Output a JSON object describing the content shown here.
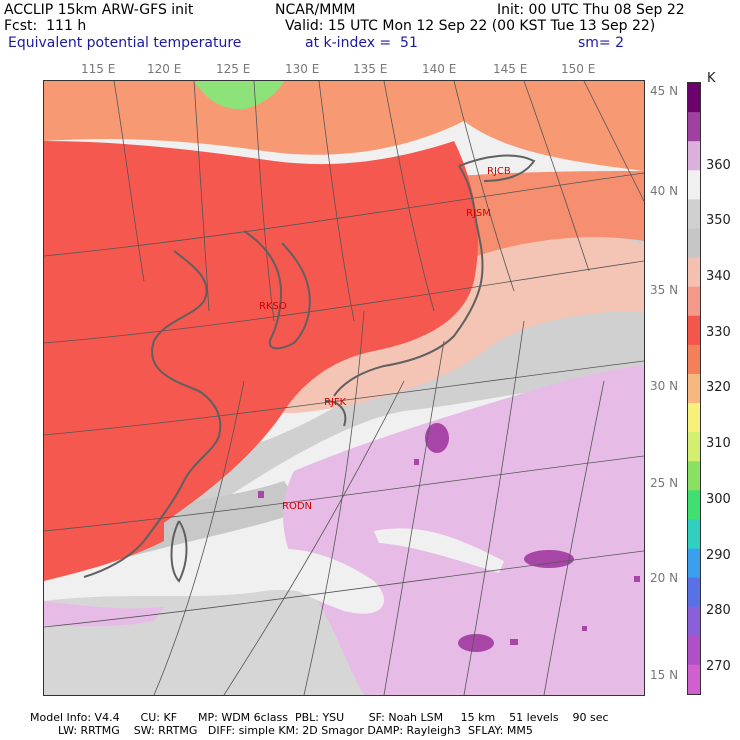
{
  "header": {
    "line1_left": "ACCLIP 15km ARW-GFS init",
    "line1_center": "NCAR/MMM",
    "line1_right": "Init: 00 UTC Thu 08 Sep 22",
    "line2_left": "Fcst:  111 h",
    "line2_right": "Valid: 15 UTC Mon 12 Sep 22 (00 KST Tue 13 Sep 22)",
    "line3_left": "Equivalent potential temperature",
    "line3_center": "at k-index =  51",
    "line3_right": "sm= 2"
  },
  "map": {
    "lon_labels": [
      "115 E",
      "120 E",
      "125 E",
      "130 E",
      "135 E",
      "140 E",
      "145 E",
      "150 E"
    ],
    "lat_labels": [
      "45 N",
      "40 N",
      "35 N",
      "30 N",
      "25 N",
      "20 N",
      "15 N"
    ],
    "stations": [
      "RJCB",
      "RJSM",
      "RKSO",
      "RJFK",
      "RODN"
    ],
    "colors": {
      "red": "#f4584f",
      "salmon": "#f58f6f",
      "peach": "#f4c4b4",
      "gray": "#d0d0d0",
      "white": "#f0f0f0",
      "lavender": "#e6bce6",
      "purple": "#a846a8",
      "green": "#8ee27a",
      "orange": "#f79a74",
      "coast": "#606060"
    }
  },
  "colorbar": {
    "unit": "K",
    "ticks": [
      "360",
      "350",
      "340",
      "330",
      "320",
      "310",
      "300",
      "290",
      "280",
      "270"
    ],
    "colors": [
      "#6c006c",
      "#a040a0",
      "#dcb0dc",
      "#f0f0f0",
      "#d0d0d0",
      "#c6c6c6",
      "#f4c0b0",
      "#f59a8a",
      "#f4564c",
      "#f4805a",
      "#f6b87e",
      "#f7f07a",
      "#d4ef70",
      "#8ae060",
      "#40e070",
      "#30d0c0",
      "#3aa0ee",
      "#5a70e6",
      "#8a60d8",
      "#b050c8",
      "#d060d0"
    ]
  },
  "footer": {
    "line1": "Model Info: V4.4      CU: KF      MP: WDM 6class  PBL: YSU       SF: Noah LSM     15 km    51 levels    90 sec",
    "line2": "        LW: RRTMG    SW: RRTMG   DIFF: simple KM: 2D Smagor DAMP: Rayleigh3  SFLAY: MM5"
  }
}
